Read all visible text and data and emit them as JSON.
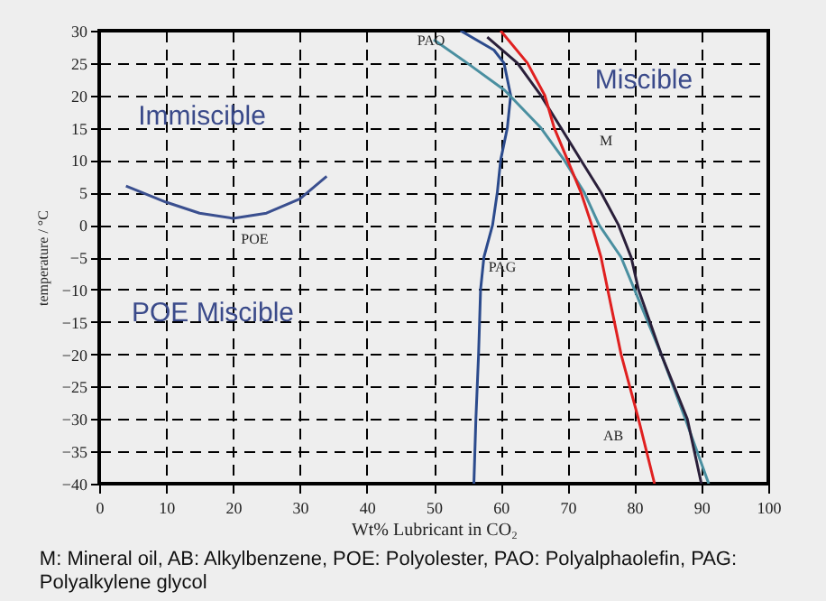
{
  "chart_data": {
    "type": "line",
    "xlabel": "Wt% Lubricant in CO₂",
    "ylabel": "temperature / °C",
    "xlim": [
      0,
      100
    ],
    "ylim": [
      -40,
      30
    ],
    "xticks": [
      0,
      10,
      20,
      30,
      40,
      50,
      60,
      70,
      80,
      90,
      100
    ],
    "yticks": [
      -40,
      -35,
      -30,
      -25,
      -20,
      -15,
      -10,
      -5,
      0,
      5,
      10,
      15,
      20,
      25,
      30
    ],
    "grid": true,
    "line_style": "solid",
    "marker": "none",
    "series": [
      {
        "name": "POE",
        "color": "#3a4f8f",
        "x": [
          4,
          10,
          15,
          20,
          25,
          30,
          34
        ],
        "values": [
          6,
          3.5,
          1.8,
          1,
          1.8,
          4,
          7.5
        ]
      },
      {
        "name": "PAG",
        "color": "#2b4a8c",
        "x": [
          54,
          59,
          60.5,
          61.5,
          61,
          60,
          59.5,
          58.8,
          57.5,
          57,
          56.7,
          56.3,
          56
        ],
        "values": [
          30,
          27,
          25,
          20,
          15,
          10,
          5,
          0,
          -5,
          -10,
          -20,
          -30,
          -40
        ]
      },
      {
        "name": "PAO",
        "color": "#4a8fa0",
        "x": [
          50,
          55,
          60.6,
          66,
          69.5,
          72.5,
          74.7,
          78,
          80,
          84,
          87.6,
          91.1
        ],
        "values": [
          28.6,
          25,
          20.8,
          15,
          10,
          5,
          0,
          -5,
          -10,
          -20,
          -30,
          -40
        ]
      },
      {
        "name": "M",
        "color": "#2a1f3a",
        "x": [
          58,
          62.5,
          66,
          69,
          72,
          75,
          77.6,
          79.5,
          80.6,
          84,
          87.9,
          90
        ],
        "values": [
          29,
          25,
          20,
          15,
          10,
          5,
          0,
          -5,
          -10,
          -20,
          -30,
          -40
        ]
      },
      {
        "name": "AB",
        "color": "#e02020",
        "x": [
          60,
          64,
          66.6,
          68,
          70,
          72,
          73.6,
          75,
          76,
          78,
          80.6,
          83
        ],
        "values": [
          30,
          25,
          20,
          15,
          10,
          5,
          0,
          -5,
          -10,
          -20,
          -30,
          -40
        ]
      }
    ],
    "annotations": [
      "Immiscible",
      "Miscible",
      "POE Miscible",
      "M: Mineral oil, AB: Alkylbenzene, POE: Polyolester, PAO: Polyalphaolefin, PAG: Polyalkylene glycol"
    ]
  }
}
